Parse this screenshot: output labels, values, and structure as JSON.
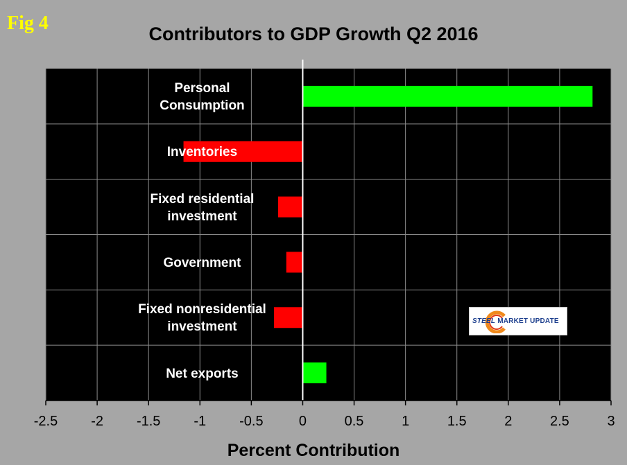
{
  "figure_label": "Fig 4",
  "logo": {
    "text_steel": "STEEL",
    "text_rest": "MARKET UPDATE"
  },
  "colors": {
    "positive": "#00ff00",
    "negative": "#ff0000",
    "plot_bg": "#000000",
    "page_bg": "#a6a6a6",
    "label_text": "#ffffff",
    "fig_label": "#ffff00"
  },
  "chart_data": {
    "type": "bar",
    "orientation": "horizontal",
    "title": "Contributors to GDP Growth Q2 2016",
    "xlabel": "Percent Contribution",
    "ylabel": "",
    "xlim": [
      -2.5,
      3
    ],
    "xticks": [
      "-2.5",
      "-2",
      "-1.5",
      "-1",
      "-0.5",
      "0",
      "0.5",
      "1",
      "1.5",
      "2",
      "2.5",
      "3"
    ],
    "grid": true,
    "legend": "none",
    "categories": [
      "Personal\nConsumption",
      "Inventories",
      "Fixed residential\ninvestment",
      "Government",
      "Fixed nonresidential\ninvestment",
      "Net exports"
    ],
    "values": [
      2.82,
      -1.16,
      -0.24,
      -0.16,
      -0.28,
      0.23
    ]
  }
}
